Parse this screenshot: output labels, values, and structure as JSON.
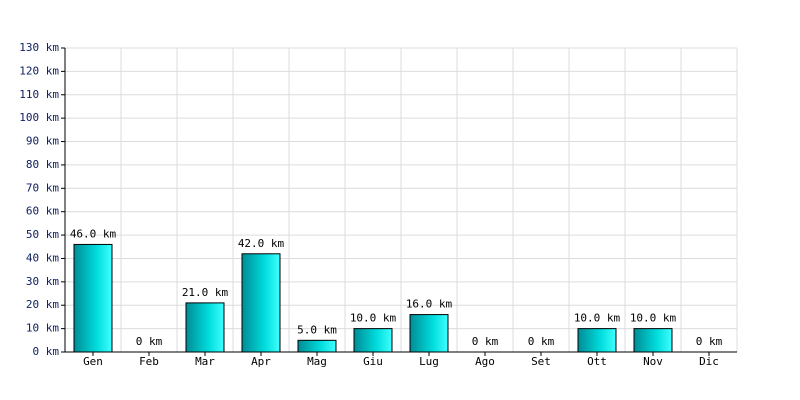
{
  "chart_data": {
    "type": "bar",
    "categories": [
      "Gen",
      "Feb",
      "Mar",
      "Apr",
      "Mag",
      "Giu",
      "Lug",
      "Ago",
      "Set",
      "Ott",
      "Nov",
      "Dic"
    ],
    "values": [
      46,
      0,
      21,
      42,
      5,
      10,
      16,
      0,
      0,
      10,
      10,
      0
    ],
    "value_labels": [
      "46.0 km",
      "0 km",
      "21.0 km",
      "42.0 km",
      "5.0 km",
      "10.0 km",
      "16.0 km",
      "0 km",
      "0 km",
      "10.0 km",
      "10.0 km",
      "0 km"
    ],
    "color": "#00c8c8",
    "ylim": [
      0,
      130
    ],
    "yticks": [
      {
        "value": 0,
        "label": "0 km"
      },
      {
        "value": 10,
        "label": "10 km"
      },
      {
        "value": 20,
        "label": "20 km"
      },
      {
        "value": 30,
        "label": "30 km"
      },
      {
        "value": 40,
        "label": "40 km"
      },
      {
        "value": 50,
        "label": "50 km"
      },
      {
        "value": 60,
        "label": "60 km"
      },
      {
        "value": 70,
        "label": "70 km"
      },
      {
        "value": 80,
        "label": "80 km"
      },
      {
        "value": 90,
        "label": "90 km"
      },
      {
        "value": 100,
        "label": "100 km"
      },
      {
        "value": 110,
        "label": "110 km"
      },
      {
        "value": 120,
        "label": "120 km"
      },
      {
        "value": 130,
        "label": "130 km"
      }
    ],
    "grid": true
  }
}
